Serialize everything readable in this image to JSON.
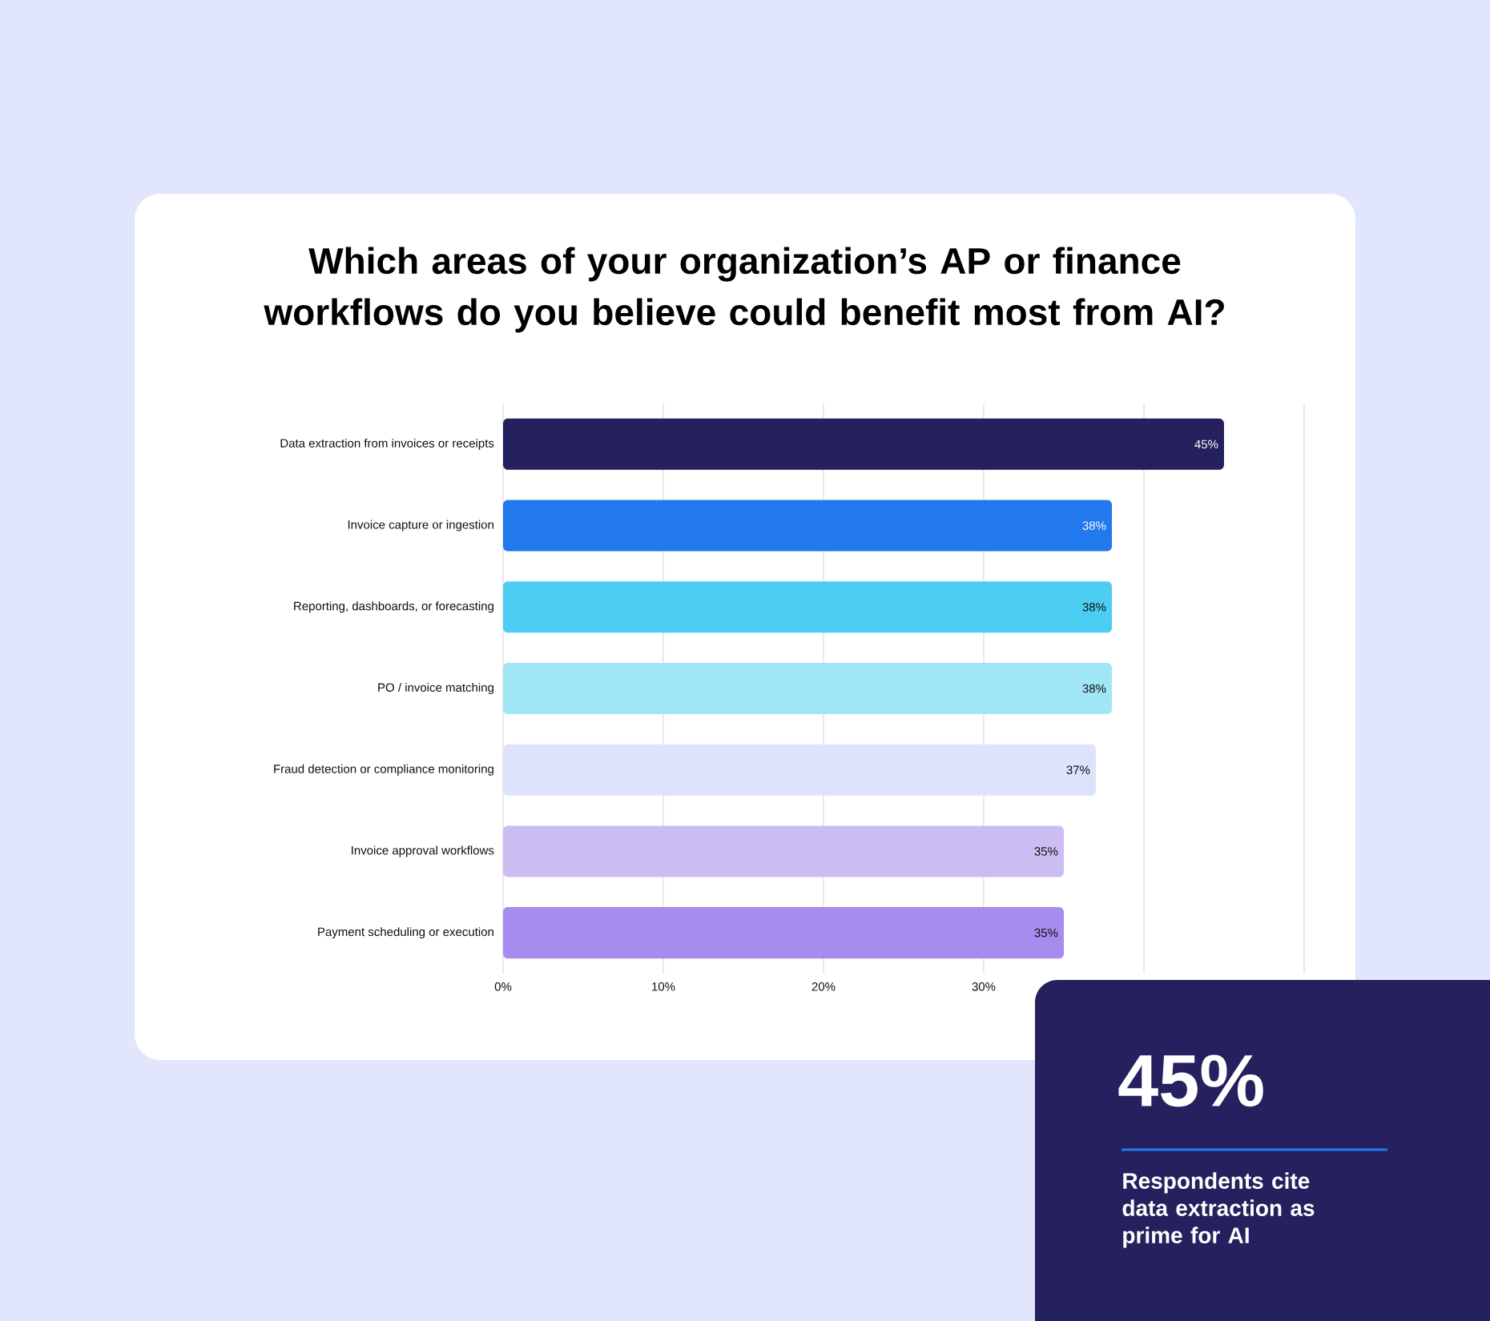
{
  "chart_data": {
    "type": "bar",
    "orientation": "horizontal",
    "title": "Which areas of your organization’s AP or finance workflows do you believe could benefit most from AI?",
    "categories": [
      "Data extraction from invoices or receipts",
      "Invoice capture or ingestion",
      "Reporting, dashboards, or forecasting",
      "PO / invoice matching",
      "Fraud detection or compliance monitoring",
      "Invoice approval workflows",
      "Payment scheduling or execution"
    ],
    "values": [
      45,
      38,
      38,
      38,
      37,
      35,
      35
    ],
    "value_labels": [
      "45%",
      "38%",
      "38%",
      "38%",
      "37%",
      "35%",
      "35%"
    ],
    "colors": [
      "#25215e",
      "#2279ee",
      "#4ccdf2",
      "#9fe6f7",
      "#dde3fb",
      "#cbbcf2",
      "#a78bef"
    ],
    "xlim": [
      0,
      50
    ],
    "xticks": [
      {
        "value": 0,
        "label": "0%"
      },
      {
        "value": 10,
        "label": "10%"
      },
      {
        "value": 20,
        "label": "20%"
      },
      {
        "value": 30,
        "label": "30%"
      },
      {
        "value": 40,
        "label": null
      },
      {
        "value": 50,
        "label": null
      }
    ],
    "grid": "x",
    "annotations": [
      "45%",
      "Respondents cite data extraction as prime for AI"
    ]
  }
}
